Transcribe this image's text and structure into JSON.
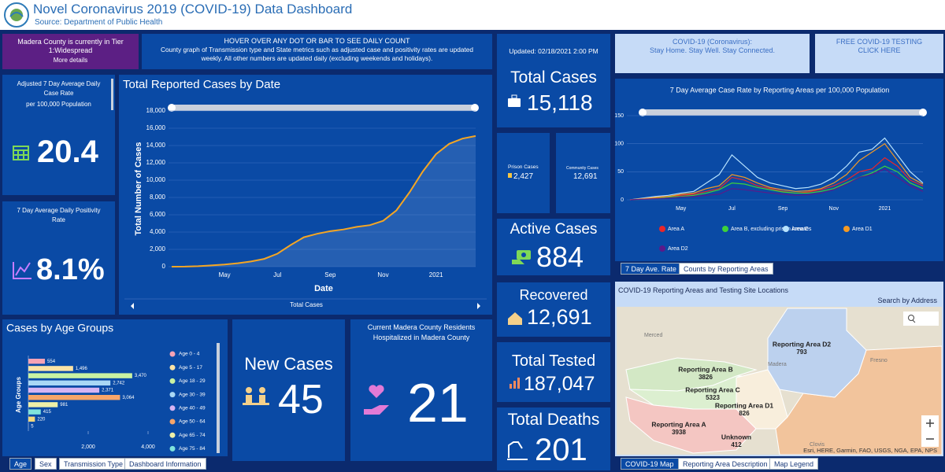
{
  "header": {
    "title": "Novel Coronavirus 2019 (COVID-19) Data Dashboard",
    "source": "Source: Department of Public Health"
  },
  "tier": {
    "text": "Madera County is currently in Tier 1:Widespread",
    "link": "More details"
  },
  "notice": {
    "title": "HOVER OVER ANY DOT OR BAR TO SEE DAILY COUNT",
    "text": "County graph of Transmission type and State metrics such as adjusted case and positivity rates are updated weekly. All other numbers are updated daily (excluding weekends and holidays)."
  },
  "banners": {
    "message_title": "COVID-19 (Coronavirus):",
    "message_text": "Stay Home. Stay Well. Stay Connected.",
    "testing_title": "FREE COVID-19 TESTING",
    "testing_link": "CLICK HERE"
  },
  "indicators": {
    "case_rate": {
      "label": "Adjusted 7 Day Average Daily Case Rate",
      "sublabel": "per 100,000 Population",
      "value": "20.4"
    },
    "positivity": {
      "label": "7 Day Average Daily Positivity Rate",
      "value": "8.1%"
    },
    "new_cases": {
      "label": "New Cases",
      "value": "45"
    },
    "hospitalized": {
      "label": "Current Madera County Residents Hospitalized in Madera County",
      "value": "21"
    },
    "total_cases": {
      "updated": "Updated: 02/18/2021 2:00 PM",
      "label": "Total Cases",
      "value": "15,118"
    },
    "prison_cases": {
      "label": "Prison Cases",
      "value": "2,427"
    },
    "community_cases": {
      "label": "Community Cases",
      "value": "12,691"
    },
    "active_cases": {
      "label": "Active Cases",
      "value": "884"
    },
    "recovered": {
      "label": "Recovered",
      "value": "12,691"
    },
    "total_tested": {
      "label": "Total Tested",
      "value": "187,047"
    },
    "total_deaths": {
      "label": "Total Deaths",
      "value": "201"
    }
  },
  "tabs": {
    "age_panel": [
      "Age",
      "Sex",
      "Transmission Type",
      "Dashboard Information"
    ],
    "area_panel": [
      "7 Day Ave. Rate",
      "Counts by Reporting Areas"
    ],
    "map_panel": [
      "COVID-19 Map",
      "Reporting Area Description",
      "Map Legend"
    ]
  },
  "map": {
    "title": "COVID-19 Reporting Areas and Testing Site Locations",
    "search": "Search by Address",
    "regions": [
      {
        "label": "Reporting Area D2",
        "count": "793"
      },
      {
        "label": "Reporting Area B",
        "count": "3826"
      },
      {
        "label": "Reporting Area C",
        "count": "5323"
      },
      {
        "label": "Reporting Area D1",
        "count": "826"
      },
      {
        "label": "Reporting Area A",
        "count": "3938"
      },
      {
        "label": "Unknown",
        "count": "412"
      }
    ],
    "places": [
      "Merced",
      "Madera",
      "Fresno",
      "Clovis"
    ],
    "attribution": "Esri, HERE, Garmin, FAO, USGS, NGA, EPA, NPS"
  },
  "chart_data": [
    {
      "type": "line",
      "title": "Total Reported Cases by Date",
      "x_label": "Date",
      "y_label": "Total Number of Cases",
      "footer": "Total Cases",
      "categories": [
        null,
        null,
        null,
        null,
        "May",
        null,
        null,
        null,
        "Jul",
        null,
        null,
        null,
        "Sep",
        null,
        null,
        null,
        "Nov",
        null,
        null,
        null,
        "2021",
        null,
        null,
        null
      ],
      "values": [
        0,
        10,
        60,
        150,
        250,
        400,
        600,
        900,
        1500,
        2500,
        3400,
        3800,
        4100,
        4300,
        4600,
        4800,
        5300,
        6500,
        8600,
        11000,
        13000,
        14200,
        14800,
        15100
      ],
      "color": "#f5a623",
      "area": true,
      "ylim": [
        0,
        18000
      ],
      "yticks": [
        0,
        {
          "value": 2000,
          "label": "2,000"
        },
        {
          "value": 4000,
          "label": "4,000"
        },
        {
          "value": 6000,
          "label": "6,000"
        },
        {
          "value": 8000,
          "label": "8,000"
        },
        {
          "value": 10000,
          "label": "10,000"
        },
        {
          "value": 12000,
          "label": "12,000"
        },
        {
          "value": 14000,
          "label": "14,000"
        },
        {
          "value": 16000,
          "label": "16,000"
        },
        {
          "value": 18000,
          "label": "18,000"
        }
      ],
      "grid": true
    },
    {
      "type": "bar",
      "orientation": "horizontal",
      "title": "Cases by Age Groups",
      "y_label": "Age Groups",
      "categories": [
        "Age 0 - 4",
        "Age 5 - 17",
        "Age 18 - 29",
        "Age 30 - 39",
        "Age 40 - 49",
        "Age 50 - 64",
        "Age 65 - 74",
        "Age 75 - 84",
        null,
        null
      ],
      "values": [
        554,
        1496,
        3470,
        2742,
        2371,
        3064,
        981,
        415,
        220,
        5
      ],
      "value_labels": [
        "554",
        "1,496",
        "3,470",
        "2,742",
        "2,371",
        "3,064",
        "981",
        "415",
        "220",
        "5"
      ],
      "colors": [
        "#f5a3b5",
        "#fbe3a6",
        "#c9f2a2",
        "#a9d8f5",
        "#d7b4f3",
        "#f7a56a",
        "#eef0a8",
        "#7fe3dc",
        "#f3d77d",
        "#c0c0c0"
      ],
      "xlim": [
        0,
        4000
      ],
      "xticks": [
        {
          "value": 2000,
          "label": "2,000"
        },
        {
          "value": 4000,
          "label": "4,000"
        }
      ],
      "legend": "right"
    },
    {
      "type": "line",
      "title": "7 Day Average Case Rate by Reporting Areas per 100,000 Population",
      "categories": [
        null,
        null,
        null,
        null,
        "May",
        null,
        null,
        null,
        "Jul",
        null,
        null,
        null,
        "Sep",
        null,
        null,
        null,
        "Nov",
        null,
        null,
        null,
        "2021",
        null,
        null,
        null
      ],
      "series": [
        {
          "name": "Area A",
          "color": "#e8262a",
          "values": [
            0,
            2,
            5,
            6,
            8,
            10,
            15,
            20,
            40,
            35,
            25,
            20,
            15,
            12,
            14,
            18,
            25,
            35,
            50,
            55,
            75,
            60,
            35,
            25
          ]
        },
        {
          "name": "Area B, excluding prison inmates",
          "color": "#3ed13a",
          "values": [
            0,
            1,
            3,
            5,
            6,
            8,
            12,
            18,
            30,
            28,
            22,
            18,
            14,
            12,
            12,
            15,
            20,
            30,
            40,
            48,
            60,
            50,
            30,
            20
          ]
        },
        {
          "name": "Area C",
          "color": "#b7e3ff",
          "values": [
            0,
            3,
            6,
            8,
            12,
            15,
            30,
            45,
            80,
            60,
            40,
            30,
            25,
            20,
            22,
            28,
            40,
            60,
            85,
            90,
            110,
            80,
            50,
            30
          ]
        },
        {
          "name": "Area D1",
          "color": "#f59a23",
          "values": [
            0,
            2,
            4,
            6,
            10,
            12,
            20,
            25,
            45,
            40,
            30,
            22,
            18,
            15,
            16,
            20,
            30,
            45,
            70,
            85,
            100,
            70,
            40,
            28
          ]
        },
        {
          "name": "Area D2",
          "color": "#5b1a8a",
          "values": [
            0,
            1,
            2,
            3,
            5,
            6,
            8,
            10,
            20,
            18,
            15,
            12,
            10,
            8,
            9,
            12,
            18,
            28,
            40,
            45,
            55,
            40,
            25,
            15
          ]
        }
      ],
      "ylim": [
        0,
        150
      ],
      "yticks": [
        0,
        50,
        100,
        150
      ],
      "grid": true,
      "legend": "bottom"
    }
  ]
}
